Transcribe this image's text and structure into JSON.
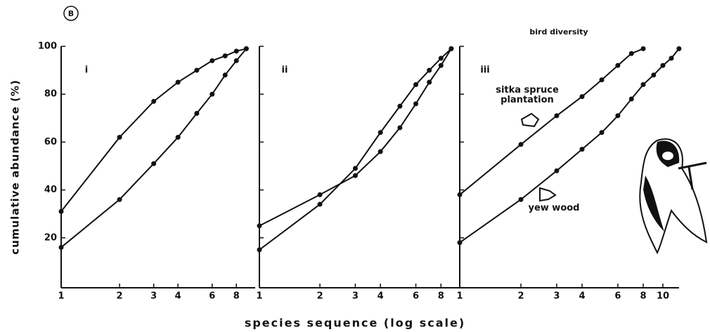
{
  "figure_label": "B",
  "title": "bird diversity",
  "ylabel": "cumulative abundance (%)",
  "xlabel": "species sequence (log scale)",
  "chart_data": [
    {
      "type": "line",
      "panel_label": "i",
      "xscale": "log",
      "xlim": [
        1,
        10
      ],
      "ylim": [
        0,
        100
      ],
      "xticks": [
        1,
        2,
        3,
        4,
        6,
        8
      ],
      "yticks": [
        20,
        40,
        60,
        80,
        100
      ],
      "series": [
        {
          "color": "#111111",
          "x": [
            1,
            2,
            3,
            4,
            5,
            6,
            7,
            8,
            9
          ],
          "values": [
            31,
            62,
            77,
            85,
            90,
            94,
            96,
            98,
            99
          ]
        },
        {
          "color": "#111111",
          "x": [
            1,
            2,
            3,
            4,
            5,
            6,
            7,
            8,
            9
          ],
          "values": [
            16,
            36,
            51,
            62,
            72,
            80,
            88,
            94,
            99
          ]
        }
      ]
    },
    {
      "type": "line",
      "panel_label": "ii",
      "xscale": "log",
      "xlim": [
        1,
        10
      ],
      "ylim": [
        0,
        100
      ],
      "xticks": [
        1,
        2,
        3,
        4,
        6,
        8
      ],
      "series": [
        {
          "color": "#111111",
          "x": [
            1,
            2,
            3,
            4,
            5,
            6,
            7,
            8,
            9
          ],
          "values": [
            25,
            38,
            46,
            56,
            66,
            76,
            85,
            92,
            99
          ]
        },
        {
          "color": "#111111",
          "x": [
            1,
            2,
            3,
            4,
            5,
            6,
            7,
            8,
            9
          ],
          "values": [
            15,
            34,
            49,
            64,
            75,
            84,
            90,
            95,
            99
          ]
        }
      ]
    },
    {
      "type": "line",
      "panel_label": "iii",
      "xscale": "log",
      "xlim": [
        1,
        12
      ],
      "ylim": [
        0,
        100
      ],
      "xticks": [
        1,
        2,
        3,
        4,
        6,
        8,
        10
      ],
      "series": [
        {
          "name": "sitka spruce plantation",
          "color": "#111111",
          "x": [
            1,
            2,
            3,
            4,
            5,
            6,
            7,
            8
          ],
          "values": [
            38,
            59,
            71,
            79,
            86,
            92,
            97,
            99
          ]
        },
        {
          "name": "yew wood",
          "color": "#111111",
          "x": [
            1,
            2,
            3,
            4,
            5,
            6,
            7,
            8,
            9,
            10,
            11,
            12
          ],
          "values": [
            18,
            36,
            48,
            57,
            64,
            71,
            78,
            84,
            88,
            92,
            95,
            99
          ]
        }
      ]
    }
  ]
}
